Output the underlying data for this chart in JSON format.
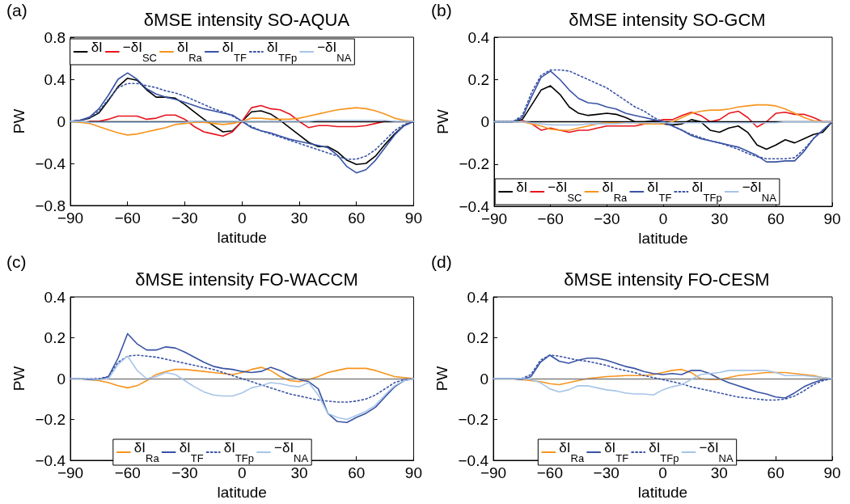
{
  "chart_data": [
    {
      "type": "line",
      "title": "δMSE intensity SO-AQUA",
      "xlabel": "latitude",
      "ylabel": "PW",
      "annotations": [
        "(a)"
      ],
      "x": [
        -90,
        -85,
        -80,
        -75,
        -70,
        -65,
        -60,
        -55,
        -50,
        -45,
        -40,
        -35,
        -30,
        -25,
        -20,
        -15,
        -10,
        -5,
        0,
        5,
        10,
        15,
        20,
        25,
        30,
        35,
        40,
        45,
        50,
        55,
        60,
        65,
        70,
        75,
        80,
        85,
        90
      ],
      "xlim": [
        -90,
        90
      ],
      "xticks": [
        -90,
        -60,
        -30,
        0,
        30,
        60,
        90
      ],
      "ylim": [
        -0.8,
        0.8
      ],
      "yticks": [
        -0.8,
        -0.4,
        0,
        0.4,
        0.8
      ],
      "grid": false,
      "legend": "top",
      "marker": "none",
      "ref_lines": [
        {
          "axis": "y",
          "value": 0,
          "color": "#000000"
        }
      ],
      "series": [
        {
          "name": "δI",
          "color": "#000000",
          "values": [
            0,
            0.01,
            0.03,
            0.08,
            0.2,
            0.33,
            0.41,
            0.39,
            0.3,
            0.23,
            0.23,
            0.22,
            0.16,
            0.09,
            0.02,
            -0.04,
            -0.1,
            -0.09,
            0,
            0.09,
            0.1,
            0.07,
            0.01,
            -0.06,
            -0.13,
            -0.2,
            -0.24,
            -0.24,
            -0.29,
            -0.37,
            -0.41,
            -0.4,
            -0.33,
            -0.22,
            -0.12,
            -0.04,
            0
          ]
        },
        {
          "name": "−δI$_{SC}$",
          "color": "#e8141c",
          "values": [
            null,
            null,
            0,
            0,
            0.02,
            0.05,
            0.05,
            0.05,
            0.02,
            0.03,
            0.06,
            0.06,
            0.02,
            -0.05,
            -0.1,
            -0.12,
            -0.14,
            -0.1,
            0,
            0.13,
            0.15,
            0.12,
            0.11,
            0.07,
            0,
            -0.06,
            -0.04,
            -0.04,
            -0.05,
            -0.05,
            -0.05,
            -0.04,
            -0.02,
            0,
            0,
            null,
            null
          ]
        },
        {
          "name": "δI$_{Ra}$",
          "color": "#f7941d",
          "values": [
            0,
            -0.01,
            -0.02,
            -0.05,
            -0.08,
            -0.11,
            -0.13,
            -0.12,
            -0.1,
            -0.08,
            -0.06,
            -0.03,
            -0.02,
            -0.01,
            -0.01,
            -0.02,
            -0.03,
            -0.02,
            0,
            0.03,
            0.03,
            0.02,
            0.02,
            0.02,
            0.03,
            0.05,
            0.07,
            0.09,
            0.11,
            0.12,
            0.13,
            0.12,
            0.1,
            0.07,
            0.03,
            0.01,
            0
          ]
        },
        {
          "name": "δI$_{TF}$",
          "color": "#3953a4",
          "values": [
            0,
            0.01,
            0.04,
            0.12,
            0.25,
            0.4,
            0.46,
            0.4,
            0.31,
            0.26,
            0.23,
            0.21,
            0.18,
            0.15,
            0.12,
            0.1,
            0.08,
            0.06,
            0,
            -0.06,
            -0.09,
            -0.11,
            -0.14,
            -0.17,
            -0.19,
            -0.21,
            -0.23,
            -0.25,
            -0.32,
            -0.43,
            -0.49,
            -0.46,
            -0.37,
            -0.25,
            -0.13,
            -0.04,
            0
          ]
        },
        {
          "name": "δI$_{TFp}$",
          "color": "#3953a4",
          "line_style": "dotted",
          "values": [
            0,
            0.01,
            0.03,
            0.1,
            0.21,
            0.32,
            0.36,
            0.36,
            0.34,
            0.32,
            0.29,
            0.27,
            0.24,
            0.2,
            0.16,
            0.12,
            0.09,
            0.05,
            0,
            -0.05,
            -0.09,
            -0.12,
            -0.15,
            -0.18,
            -0.21,
            -0.24,
            -0.27,
            -0.3,
            -0.33,
            -0.36,
            -0.36,
            -0.33,
            -0.27,
            -0.18,
            -0.09,
            -0.03,
            0
          ]
        },
        {
          "name": "−δI$_{NA}$",
          "color": "#a6c4e8",
          "values": [
            0,
            0,
            -0.01,
            -0.01,
            -0.01,
            -0.01,
            -0.01,
            -0.01,
            -0.01,
            -0.01,
            -0.01,
            -0.01,
            -0.01,
            0,
            0,
            0,
            0,
            0,
            0,
            0,
            0,
            0,
            0,
            0,
            0,
            0,
            0.01,
            0.01,
            0.01,
            0.01,
            0.01,
            0.01,
            0.01,
            0.01,
            0,
            0,
            0
          ]
        }
      ]
    },
    {
      "type": "line",
      "title": "δMSE intensity SO-GCM",
      "xlabel": "latitude",
      "ylabel": "PW",
      "annotations": [
        "(b)"
      ],
      "x": [
        -90,
        -85,
        -80,
        -75,
        -70,
        -65,
        -60,
        -55,
        -50,
        -45,
        -40,
        -35,
        -30,
        -25,
        -20,
        -15,
        -10,
        -5,
        0,
        5,
        10,
        15,
        20,
        25,
        30,
        35,
        40,
        45,
        50,
        55,
        60,
        65,
        70,
        75,
        80,
        85,
        90
      ],
      "xlim": [
        -90,
        90
      ],
      "xticks": [
        -90,
        -60,
        -30,
        0,
        30,
        60,
        90
      ],
      "ylim": [
        -0.4,
        0.4
      ],
      "yticks": [
        -0.4,
        -0.2,
        0,
        0.2,
        0.4
      ],
      "grid": false,
      "legend": "bottom",
      "marker": "none",
      "ref_lines": [
        {
          "axis": "y",
          "value": 0,
          "color": "#000000"
        }
      ],
      "series": [
        {
          "name": "δI",
          "color": "#000000",
          "values": [
            0,
            0,
            0,
            0.01,
            0.08,
            0.15,
            0.17,
            0.13,
            0.07,
            0.04,
            0.03,
            0.035,
            0.04,
            0.035,
            0.02,
            0,
            0,
            0.005,
            -0.01,
            -0.015,
            -0.01,
            0.01,
            0,
            -0.04,
            -0.05,
            -0.03,
            -0.02,
            -0.05,
            -0.11,
            -0.13,
            -0.11,
            -0.085,
            -0.1,
            -0.08,
            -0.06,
            -0.05,
            0
          ]
        },
        {
          "name": "−δI$_{SC}$",
          "color": "#e8141c",
          "values": [
            null,
            null,
            null,
            0.005,
            -0.01,
            -0.04,
            -0.03,
            -0.04,
            -0.05,
            -0.04,
            -0.04,
            -0.03,
            -0.02,
            -0.02,
            -0.02,
            -0.02,
            -0.01,
            0,
            0.01,
            0.01,
            0.03,
            0.045,
            0.03,
            0,
            0.01,
            0.04,
            0.05,
            0.02,
            -0.025,
            0,
            0.04,
            0.045,
            0.035,
            0.035,
            0.02,
            0,
            0
          ]
        },
        {
          "name": "δI$_{Ra}$",
          "color": "#f7941d",
          "values": [
            null,
            null,
            0,
            0,
            -0.01,
            -0.02,
            -0.035,
            -0.04,
            -0.04,
            -0.03,
            -0.02,
            -0.01,
            -0.005,
            -0.005,
            -0.005,
            -0.005,
            -0.01,
            -0.01,
            -0.01,
            0,
            0.02,
            0.04,
            0.05,
            0.055,
            0.055,
            0.06,
            0.07,
            0.075,
            0.08,
            0.08,
            0.075,
            0.06,
            0.04,
            0.02,
            0.005,
            0,
            0
          ]
        },
        {
          "name": "δI$_{TF}$",
          "color": "#3953a4",
          "values": [
            0,
            0,
            0,
            0.02,
            0.12,
            0.21,
            0.24,
            0.2,
            0.15,
            0.11,
            0.09,
            0.085,
            0.07,
            0.06,
            0.04,
            0.03,
            0.02,
            0.01,
            0,
            -0.02,
            -0.04,
            -0.065,
            -0.08,
            -0.09,
            -0.1,
            -0.11,
            -0.12,
            -0.14,
            -0.16,
            -0.19,
            -0.19,
            -0.185,
            -0.185,
            -0.14,
            -0.08,
            -0.04,
            0
          ]
        },
        {
          "name": "δI$_{TFp}$",
          "color": "#3953a4",
          "line_style": "dotted",
          "values": [
            0,
            0,
            0,
            0.03,
            0.14,
            0.22,
            0.245,
            0.245,
            0.24,
            0.22,
            0.2,
            0.18,
            0.16,
            0.13,
            0.1,
            0.07,
            0.05,
            0.02,
            0,
            -0.02,
            -0.04,
            -0.06,
            -0.075,
            -0.09,
            -0.1,
            -0.115,
            -0.13,
            -0.15,
            -0.165,
            -0.175,
            -0.175,
            -0.175,
            -0.17,
            -0.13,
            -0.08,
            -0.04,
            0
          ]
        },
        {
          "name": "−δI$_{NA}$",
          "color": "#a6c4e8",
          "values": [
            0,
            0,
            0,
            0,
            -0.005,
            -0.01,
            -0.015,
            -0.015,
            -0.015,
            -0.015,
            -0.01,
            -0.01,
            -0.01,
            -0.01,
            -0.005,
            -0.005,
            -0.005,
            -0.005,
            -0.005,
            -0.005,
            -0.005,
            -0.005,
            -0.005,
            -0.005,
            -0.005,
            -0.005,
            -0.005,
            -0.005,
            -0.005,
            -0.005,
            -0.005,
            0,
            0,
            0,
            0,
            0,
            0
          ]
        }
      ]
    },
    {
      "type": "line",
      "title": "δMSE intensity FO-WACCM",
      "xlabel": "latitude",
      "ylabel": "PW",
      "annotations": [
        "(c)"
      ],
      "x": [
        -90,
        -85,
        -80,
        -75,
        -70,
        -65,
        -60,
        -55,
        -50,
        -45,
        -40,
        -35,
        -30,
        -25,
        -20,
        -15,
        -10,
        -5,
        0,
        5,
        10,
        15,
        20,
        25,
        30,
        35,
        40,
        45,
        50,
        55,
        60,
        65,
        70,
        75,
        80,
        85,
        90
      ],
      "xlim": [
        -90,
        90
      ],
      "xticks": [
        -90,
        -60,
        -30,
        0,
        30,
        60,
        90
      ],
      "ylim": [
        -0.4,
        0.4
      ],
      "yticks": [
        -0.4,
        -0.2,
        0,
        0.2,
        0.4
      ],
      "grid": false,
      "legend": "bottom",
      "marker": "none",
      "ref_lines": [
        {
          "axis": "y",
          "value": 0,
          "color": "#808080"
        }
      ],
      "series": [
        {
          "name": "δI$_{Ra}$",
          "color": "#f7941d",
          "values": [
            0,
            0,
            -0.005,
            -0.01,
            -0.02,
            -0.035,
            -0.045,
            -0.035,
            -0.01,
            0.02,
            0.035,
            0.045,
            0.045,
            0.04,
            0.035,
            0.03,
            0.025,
            0.02,
            0.03,
            0.045,
            0.055,
            0.04,
            0.01,
            -0.01,
            -0.015,
            -0.005,
            0.01,
            0.03,
            0.04,
            0.05,
            0.05,
            0.05,
            0.04,
            0.025,
            0.01,
            0.005,
            0
          ]
        },
        {
          "name": "δI$_{TF}$",
          "color": "#3953a4",
          "values": [
            0,
            0,
            -0.005,
            -0.005,
            0.01,
            0.1,
            0.22,
            0.17,
            0.14,
            0.14,
            0.155,
            0.15,
            0.13,
            0.105,
            0.08,
            0.06,
            0.05,
            0.045,
            0.035,
            0.03,
            0.035,
            0.055,
            0.04,
            0.015,
            -0.005,
            -0.015,
            -0.05,
            -0.17,
            -0.21,
            -0.215,
            -0.19,
            -0.17,
            -0.14,
            -0.09,
            -0.04,
            -0.01,
            0
          ]
        },
        {
          "name": "δI$_{TFp}$",
          "color": "#3953a4",
          "line_style": "dotted",
          "values": [
            0,
            0,
            0,
            0,
            0.01,
            0.08,
            0.11,
            0.115,
            0.11,
            0.105,
            0.095,
            0.085,
            0.075,
            0.065,
            0.055,
            0.045,
            0.03,
            0.015,
            0,
            -0.015,
            -0.03,
            -0.045,
            -0.06,
            -0.075,
            -0.085,
            -0.095,
            -0.105,
            -0.11,
            -0.115,
            -0.115,
            -0.11,
            -0.1,
            -0.08,
            -0.05,
            -0.02,
            -0.005,
            0
          ]
        },
        {
          "name": "−δI$_{NA}$",
          "color": "#a6c4e8",
          "values": [
            0,
            0,
            0,
            -0.005,
            0,
            0.07,
            0.11,
            0.04,
            0,
            0.01,
            0.03,
            0.02,
            -0.01,
            -0.04,
            -0.065,
            -0.08,
            -0.085,
            -0.085,
            -0.07,
            -0.045,
            -0.035,
            -0.02,
            -0.025,
            -0.035,
            -0.04,
            -0.02,
            -0.08,
            -0.17,
            -0.19,
            -0.2,
            -0.18,
            -0.16,
            -0.13,
            -0.08,
            -0.035,
            -0.01,
            0
          ]
        }
      ]
    },
    {
      "type": "line",
      "title": "δMSE intensity FO-CESM",
      "xlabel": "latitude",
      "ylabel": "PW",
      "annotations": [
        "(d)"
      ],
      "x": [
        -90,
        -85,
        -80,
        -75,
        -70,
        -65,
        -60,
        -55,
        -50,
        -45,
        -40,
        -35,
        -30,
        -25,
        -20,
        -15,
        -10,
        -5,
        0,
        5,
        10,
        15,
        20,
        25,
        30,
        35,
        40,
        45,
        50,
        55,
        60,
        65,
        70,
        75,
        80,
        85,
        90
      ],
      "xlim": [
        -90,
        90
      ],
      "xticks": [
        -90,
        -60,
        -30,
        0,
        30,
        60,
        90
      ],
      "ylim": [
        -0.4,
        0.4
      ],
      "yticks": [
        -0.4,
        -0.2,
        0,
        0.2,
        0.4
      ],
      "grid": false,
      "legend": "bottom",
      "marker": "none",
      "ref_lines": [
        {
          "axis": "y",
          "value": 0,
          "color": "#808080"
        }
      ],
      "series": [
        {
          "name": "δI$_{Ra}$",
          "color": "#f7941d",
          "values": [
            null,
            null,
            0,
            -0.005,
            -0.01,
            -0.015,
            -0.025,
            -0.03,
            -0.02,
            -0.01,
            0,
            0.005,
            0.01,
            0.012,
            0.015,
            0.015,
            0.015,
            0.02,
            0.03,
            0.04,
            0.045,
            0.03,
            0,
            -0.005,
            -0.005,
            0.005,
            0.015,
            0.02,
            0.025,
            0.03,
            0.03,
            0.03,
            0.025,
            0.02,
            0.015,
            0.005,
            0
          ]
        },
        {
          "name": "δI$_{TF}$",
          "color": "#3953a4",
          "values": [
            0,
            0,
            0,
            -0.005,
            0.01,
            0.08,
            0.115,
            0.085,
            0.075,
            0.09,
            0.1,
            0.1,
            0.09,
            0.075,
            0.06,
            0.05,
            0.035,
            0.025,
            0.02,
            0.025,
            0.02,
            0.04,
            0.04,
            0.025,
            0,
            -0.02,
            -0.035,
            -0.05,
            -0.065,
            -0.075,
            -0.09,
            -0.095,
            -0.07,
            -0.04,
            -0.02,
            -0.005,
            0
          ]
        },
        {
          "name": "δI$_{TFp}$",
          "color": "#3953a4",
          "line_style": "dotted",
          "values": [
            0,
            0,
            0,
            0,
            0.02,
            0.09,
            0.115,
            0.11,
            0.1,
            0.09,
            0.085,
            0.075,
            0.065,
            0.05,
            0.04,
            0.03,
            0.015,
            0.005,
            -0.005,
            -0.015,
            -0.025,
            -0.04,
            -0.05,
            -0.06,
            -0.07,
            -0.08,
            -0.09,
            -0.095,
            -0.1,
            -0.105,
            -0.105,
            -0.1,
            -0.085,
            -0.06,
            -0.03,
            -0.01,
            0
          ]
        },
        {
          "name": "−δI$_{NA}$",
          "color": "#a6c4e8",
          "values": [
            0,
            0,
            0,
            0,
            -0.005,
            -0.02,
            -0.05,
            -0.065,
            -0.055,
            -0.035,
            -0.035,
            -0.045,
            -0.055,
            -0.06,
            -0.07,
            -0.075,
            -0.075,
            -0.08,
            -0.055,
            -0.04,
            -0.03,
            -0.005,
            0.02,
            0.025,
            0.03,
            0.04,
            0.04,
            0.04,
            0.04,
            0.04,
            0.03,
            0.015,
            0.015,
            0.015,
            0.01,
            0.005,
            0
          ]
        }
      ]
    }
  ]
}
